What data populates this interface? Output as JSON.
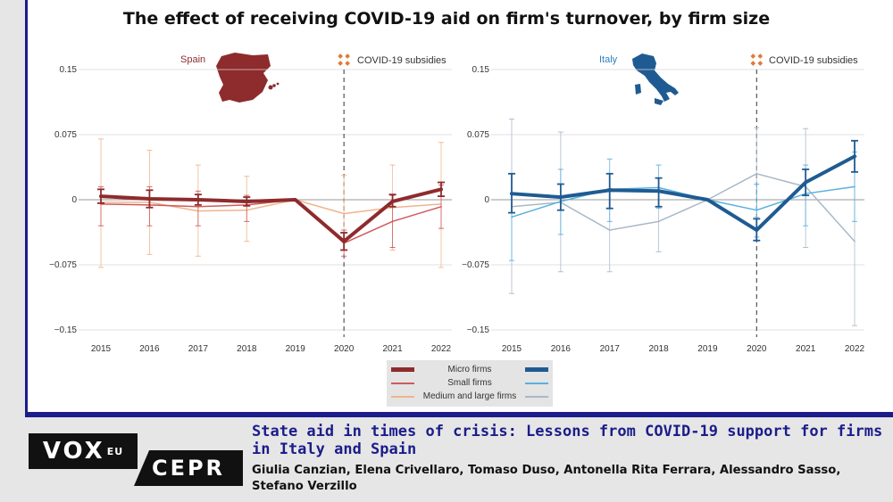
{
  "title": "The effect of receiving COVID-19 aid on firm's turnover, by firm size",
  "footer": {
    "logo_vox": "VOX",
    "logo_eu": "EU",
    "logo_cepr": "CEPR",
    "article_title": "State aid in times of crisis: Lessons from COVID-19 support for firms in Italy and Spain",
    "authors": "Giulia Canzian, Elena Crivellaro, Tomaso Duso, Antonella Rita Ferrara, Alessandro Sasso, Stefano Verzillo"
  },
  "legend": {
    "entries": [
      "Micro firms",
      "Small firms",
      "Medium and large firms"
    ],
    "spain_colors": [
      "#8e2b2d",
      "#cf5a5a",
      "#f0b48c"
    ],
    "italy_colors": [
      "#1f5b92",
      "#59b0df",
      "#a9b8c8"
    ]
  },
  "chart_data": [
    {
      "type": "line",
      "panel_label": "Spain",
      "annotation": "COVID-19 subsidies",
      "annotation_x": 2020,
      "x": [
        2015,
        2016,
        2017,
        2018,
        2019,
        2020,
        2021,
        2022
      ],
      "yticks": [
        "0.15",
        "0.075",
        "0",
        "−0.075",
        "−0.15"
      ],
      "ytick_values": [
        0.15,
        0.075,
        0,
        -0.075,
        -0.15
      ],
      "ylim": [
        -0.15,
        0.15
      ],
      "series": [
        {
          "name": "Micro firms",
          "color": "#8e2b2d",
          "width": 4,
          "values": [
            0.004,
            0.001,
            0.0,
            -0.002,
            0.0,
            -0.048,
            -0.002,
            0.012
          ],
          "ci": [
            [
              -0.004,
              0.012
            ],
            [
              -0.009,
              0.011
            ],
            [
              -0.006,
              0.006
            ],
            [
              -0.007,
              0.003
            ],
            [
              0.0,
              0.0
            ],
            [
              -0.058,
              -0.038
            ],
            [
              -0.008,
              0.006
            ],
            [
              0.004,
              0.02
            ]
          ]
        },
        {
          "name": "Small firms",
          "color": "#cf5a5a",
          "width": 1.5,
          "values": [
            -0.005,
            -0.006,
            -0.008,
            -0.006,
            0.0,
            -0.05,
            -0.025,
            -0.008
          ],
          "ci": [
            [
              -0.03,
              0.015
            ],
            [
              -0.03,
              0.015
            ],
            [
              -0.03,
              0.01
            ],
            [
              -0.025,
              0.005
            ],
            [
              0.0,
              0.0
            ],
            [
              -0.065,
              -0.035
            ],
            [
              -0.055,
              0.005
            ],
            [
              -0.033,
              0.017
            ]
          ]
        },
        {
          "name": "Medium and large firms",
          "color": "#f0b48c",
          "width": 1.5,
          "values": [
            -0.003,
            -0.003,
            -0.013,
            -0.012,
            0.0,
            -0.016,
            -0.009,
            -0.005
          ],
          "ci": [
            [
              -0.078,
              0.07
            ],
            [
              -0.063,
              0.057
            ],
            [
              -0.065,
              0.04
            ],
            [
              -0.048,
              0.027
            ],
            [
              0.0,
              0.0
            ],
            [
              -0.045,
              0.028
            ],
            [
              -0.058,
              0.04
            ],
            [
              -0.078,
              0.066
            ]
          ]
        }
      ]
    },
    {
      "type": "line",
      "panel_label": "Italy",
      "annotation": "COVID-19 subsidies",
      "annotation_x": 2020,
      "x": [
        2015,
        2016,
        2017,
        2018,
        2019,
        2020,
        2021,
        2022
      ],
      "yticks": [
        "0.15",
        "0.075",
        "0",
        "−0.075",
        "−0.15"
      ],
      "ytick_values": [
        0.15,
        0.075,
        0,
        -0.075,
        -0.15
      ],
      "ylim": [
        -0.15,
        0.15
      ],
      "series": [
        {
          "name": "Micro firms",
          "color": "#1f5b92",
          "width": 4,
          "values": [
            0.007,
            0.003,
            0.011,
            0.01,
            0.0,
            -0.035,
            0.02,
            0.05
          ],
          "ci": [
            [
              -0.015,
              0.03
            ],
            [
              -0.012,
              0.018
            ],
            [
              -0.01,
              0.03
            ],
            [
              -0.008,
              0.025
            ],
            [
              0.0,
              0.0
            ],
            [
              -0.047,
              -0.022
            ],
            [
              0.005,
              0.035
            ],
            [
              0.032,
              0.068
            ]
          ]
        },
        {
          "name": "Small firms",
          "color": "#59b0df",
          "width": 1.5,
          "values": [
            -0.02,
            -0.002,
            0.012,
            0.014,
            0.0,
            -0.012,
            0.007,
            0.015
          ],
          "ci": [
            [
              -0.07,
              0.03
            ],
            [
              -0.04,
              0.035
            ],
            [
              -0.025,
              0.047
            ],
            [
              -0.01,
              0.04
            ],
            [
              0.0,
              0.0
            ],
            [
              -0.043,
              0.018
            ],
            [
              -0.03,
              0.04
            ],
            [
              -0.025,
              0.055
            ]
          ]
        },
        {
          "name": "Medium and large firms",
          "color": "#a9b8c8",
          "width": 1.5,
          "values": [
            -0.008,
            -0.003,
            -0.035,
            -0.025,
            0.0,
            0.03,
            0.015,
            -0.048
          ],
          "ci": [
            [
              -0.108,
              0.093
            ],
            [
              -0.083,
              0.078
            ],
            [
              -0.083,
              0.013
            ],
            [
              -0.06,
              0.01
            ],
            [
              0.0,
              0.0
            ],
            [
              -0.02,
              0.083
            ],
            [
              -0.055,
              0.082
            ],
            [
              -0.145,
              0.05
            ]
          ]
        }
      ]
    }
  ]
}
